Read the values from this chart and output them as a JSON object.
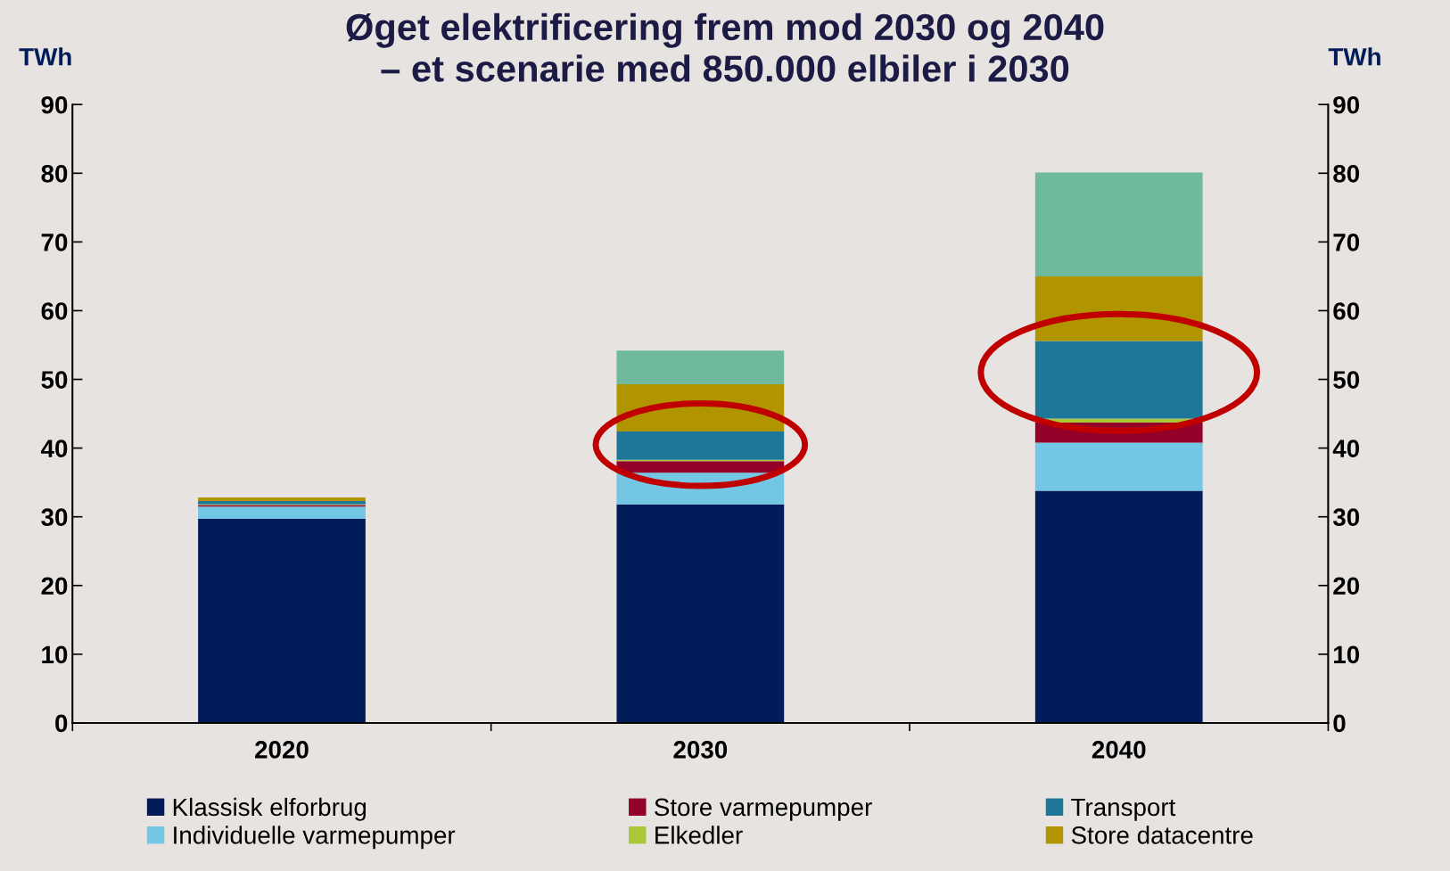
{
  "chart_data": {
    "type": "bar",
    "title": "Øget elektrificering frem mod 2030 og 2040\n– et scenarie med 850.000 elbiler i 2030",
    "ylabel": "TWh",
    "y2label": "TWh",
    "categories": [
      "2020",
      "2030",
      "2040"
    ],
    "stacked": true,
    "series": [
      {
        "name": "Klassisk elforbrug",
        "color": "#021c5a",
        "values": [
          29.7,
          31.8,
          33.8
        ]
      },
      {
        "name": "Individuelle varmepumper",
        "color": "#73c7e5",
        "values": [
          1.8,
          4.6,
          7.0
        ]
      },
      {
        "name": "Store varmepumper",
        "color": "#930028",
        "values": [
          0.2,
          1.7,
          2.9
        ]
      },
      {
        "name": "Elkedler",
        "color": "#a9c83a",
        "values": [
          0.1,
          0.2,
          0.6
        ]
      },
      {
        "name": "Transport",
        "color": "#1e7798",
        "values": [
          0.5,
          4.1,
          11.3
        ]
      },
      {
        "name": "Store datacentre",
        "color": "#b09400",
        "values": [
          0.5,
          6.9,
          9.4
        ]
      },
      {
        "color": "#6fba9c",
        "values": [
          0.0,
          4.9,
          15.1
        ]
      }
    ],
    "ylim": [
      0,
      90
    ],
    "yticks": [
      0,
      10,
      20,
      30,
      40,
      50,
      60,
      70,
      80,
      90
    ],
    "y2lim": [
      0,
      90
    ],
    "y2ticks": [
      0,
      10,
      20,
      30,
      40,
      50,
      60,
      70,
      80,
      90
    ],
    "grid": false,
    "legend": "bottom"
  }
}
